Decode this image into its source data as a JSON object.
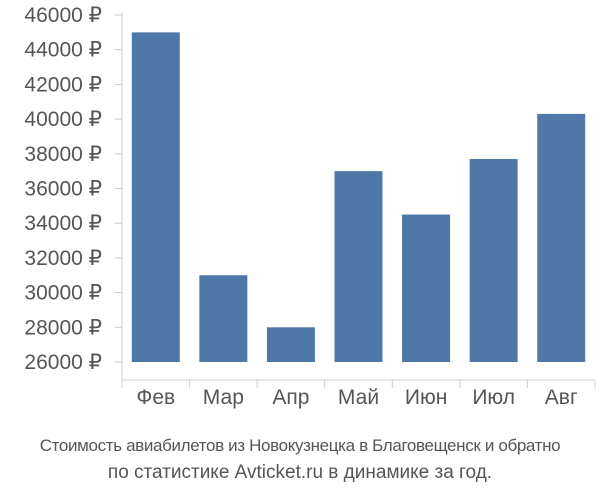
{
  "chart_data": {
    "type": "bar",
    "categories": [
      "Фев",
      "Мар",
      "Апр",
      "Май",
      "Июн",
      "Июл",
      "Авг"
    ],
    "values": [
      45000,
      31000,
      28000,
      37000,
      34500,
      37700,
      40300
    ],
    "y_ticks": [
      "26000 ₽",
      "28000 ₽",
      "30000 ₽",
      "32000 ₽",
      "34000 ₽",
      "36000 ₽",
      "38000 ₽",
      "40000 ₽",
      "42000 ₽",
      "44000 ₽",
      "46000 ₽"
    ],
    "ylim": [
      26000,
      46000
    ],
    "grid": false,
    "legend": "none",
    "bar_color": "#4e78a8",
    "axis_color": "#cccccc"
  },
  "caption": {
    "line1": "Стоимость авиабилетов из Новокузнецка в Благовещенск и обратно",
    "line2": "по статистике Avticket.ru в динамике за год."
  }
}
